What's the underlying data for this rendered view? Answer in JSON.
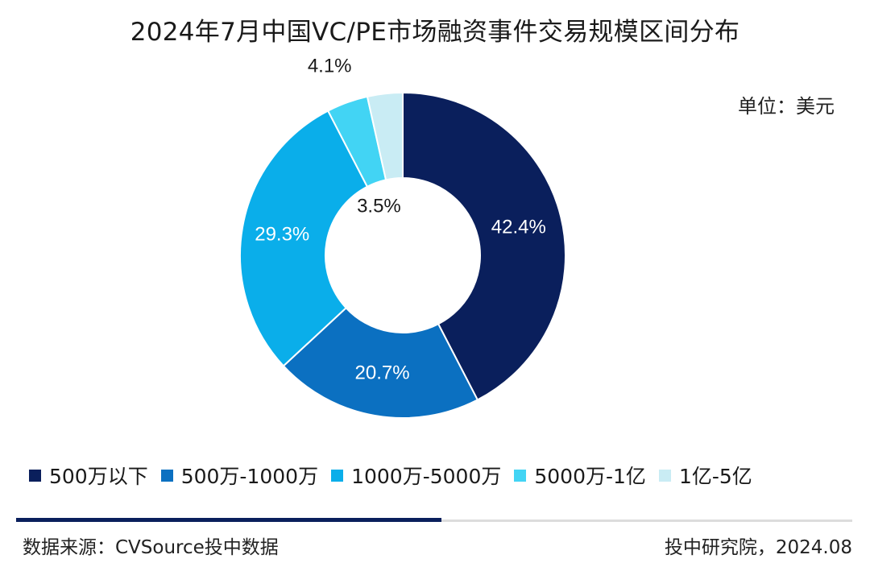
{
  "title": "2024年7月中国VC/PE市场融资事件交易规模区间分布",
  "unit_label": "单位：美元",
  "source": "数据来源：CVSource投中数据",
  "credit": "投中研究院，2024.08",
  "chart_data": {
    "type": "pie",
    "donut": true,
    "title": "2024年7月中国VC/PE市场融资事件交易规模区间分布",
    "legend_position": "bottom",
    "categories": [
      "500万以下",
      "500万-1000万",
      "1000万-5000万",
      "5000万-1亿",
      "1亿-5亿"
    ],
    "values": [
      42.4,
      20.7,
      29.3,
      4.1,
      3.5
    ],
    "labels": [
      "42.4%",
      "20.7%",
      "29.3%",
      "4.1%",
      "3.5%"
    ],
    "colors": [
      "#0a1f5c",
      "#0b70c1",
      "#0aaeea",
      "#42d4f4",
      "#c9ecf4"
    ]
  }
}
